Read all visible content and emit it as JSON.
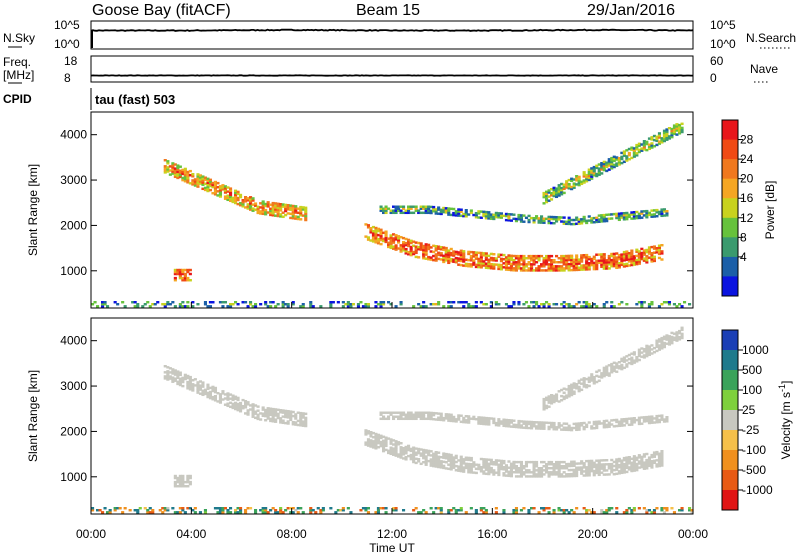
{
  "header": {
    "station": "Goose Bay (fitACF)",
    "beam": "Beam 15",
    "date": "29/Jan/2016"
  },
  "strip_panels": {
    "nsky_label": "N.Sky",
    "nsky_ticks": [
      "10^5",
      "10^0"
    ],
    "nsearch_label": "N.Search",
    "nsearch_ticks": [
      "10^5",
      "10^0"
    ],
    "freq_label_1": "Freq.",
    "freq_label_2": "[MHz]",
    "freq_ticks": [
      "18",
      "8"
    ],
    "nave_label": "Nave",
    "nave_ticks": [
      "60",
      "0"
    ],
    "cpid_label": "CPID",
    "cpid_value": "tau (fast) 503"
  },
  "panels": {
    "ylabel": "Slant Range [km]",
    "yticks": [
      "4000",
      "3000",
      "2000",
      "1000"
    ],
    "xlabel": "Time UT",
    "xticks": [
      "00:00",
      "04:00",
      "08:00",
      "12:00",
      "16:00",
      "20:00",
      "00:00"
    ]
  },
  "power_scale": {
    "label": "Power [dB]",
    "ticks": [
      "28",
      "24",
      "20",
      "16",
      "12",
      "8",
      "4"
    ],
    "colors": [
      "#e8161b",
      "#f04a14",
      "#f0781e",
      "#f5a623",
      "#c8d21e",
      "#66c23c",
      "#3a9a6e",
      "#1b5fa8",
      "#0b14e0"
    ]
  },
  "velocity_scale": {
    "label": "Velocity [m s",
    "superscript": "-1",
    "closing": "]",
    "ticks": [
      "1000",
      "500",
      "100",
      "25",
      "-25",
      "-100",
      "-500",
      "-1000"
    ],
    "colors": [
      "#1b3fb5",
      "#1f7a8c",
      "#3aa35a",
      "#7ed03c",
      "#c8c8c0",
      "#f5c04a",
      "#f0901e",
      "#e85a14",
      "#e01414"
    ]
  },
  "chart_data": [
    {
      "type": "line",
      "title": "N.Sky / N.Search",
      "x": [
        "00:00",
        "04:00",
        "08:00",
        "12:00",
        "16:00",
        "20:00",
        "24:00"
      ],
      "series": [
        {
          "name": "N.Sky",
          "values": [
            3.3,
            3.3,
            3.4,
            3.3,
            3.3,
            3.4,
            3.3
          ]
        }
      ],
      "ylim": [
        0,
        5
      ]
    },
    {
      "type": "line",
      "title": "Freq. / Nave",
      "x": [
        "00:00",
        "04:00",
        "08:00",
        "12:00",
        "16:00",
        "20:00",
        "24:00"
      ],
      "series": [
        {
          "name": "Freq.",
          "values": [
            10.5,
            10.5,
            10.5,
            10.5,
            10.5,
            10.5,
            10.5
          ]
        }
      ],
      "ylim": [
        8,
        18
      ]
    },
    {
      "type": "heatmap",
      "title": "Power",
      "xlabel": "Time UT",
      "ylabel": "Slant Range [km]",
      "xlim": [
        0,
        24
      ],
      "ylim": [
        180,
        4500
      ],
      "clim": [
        0,
        30
      ],
      "bands": [
        {
          "t0": 2.9,
          "t1": 8.5,
          "r_center": [
            3300,
            2850,
            2400,
            2250
          ],
          "width": 300,
          "value": 17
        },
        {
          "t0": 3.3,
          "t1": 4.0,
          "r_center": [
            900,
            900
          ],
          "width": 250,
          "value": 22
        },
        {
          "t0": 10.9,
          "t1": 22.8,
          "r_center": [
            1850,
            1450,
            1250,
            1150,
            1150,
            1200,
            1400
          ],
          "width": 320,
          "value": 21
        },
        {
          "t0": 11.5,
          "t1": 23.0,
          "r_center": [
            2350,
            2350,
            2250,
            2150,
            2100,
            2200,
            2300
          ],
          "width": 180,
          "value": 8
        },
        {
          "t0": 18.0,
          "t1": 23.6,
          "r_center": [
            2600,
            3000,
            3400,
            3800,
            4200
          ],
          "width": 260,
          "value": 10
        },
        {
          "t0": 0.0,
          "t1": 24.0,
          "r_center": [
            250,
            250
          ],
          "width": 100,
          "value": 6
        }
      ]
    },
    {
      "type": "heatmap",
      "title": "Velocity",
      "xlabel": "Time UT",
      "ylabel": "Slant Range [km]",
      "xlim": [
        0,
        24
      ],
      "ylim": [
        180,
        4500
      ],
      "clim": [
        -1000,
        1000
      ],
      "bands": [
        {
          "t0": 2.9,
          "t1": 8.5,
          "r_center": [
            3300,
            2850,
            2400,
            2250
          ],
          "width": 300,
          "value": 0
        },
        {
          "t0": 3.3,
          "t1": 4.0,
          "r_center": [
            900,
            900
          ],
          "width": 250,
          "value": 0
        },
        {
          "t0": 10.9,
          "t1": 22.8,
          "r_center": [
            1850,
            1450,
            1250,
            1150,
            1150,
            1200,
            1400
          ],
          "width": 320,
          "value": 0
        },
        {
          "t0": 11.5,
          "t1": 23.0,
          "r_center": [
            2350,
            2350,
            2250,
            2150,
            2100,
            2200,
            2300
          ],
          "width": 180,
          "value": 0
        },
        {
          "t0": 18.0,
          "t1": 23.6,
          "r_center": [
            2600,
            3000,
            3400,
            3800,
            4200
          ],
          "width": 260,
          "value": 0
        },
        {
          "t0": 0.0,
          "t1": 24.0,
          "r_center": [
            250,
            250
          ],
          "width": 100,
          "value": 60
        }
      ]
    }
  ]
}
